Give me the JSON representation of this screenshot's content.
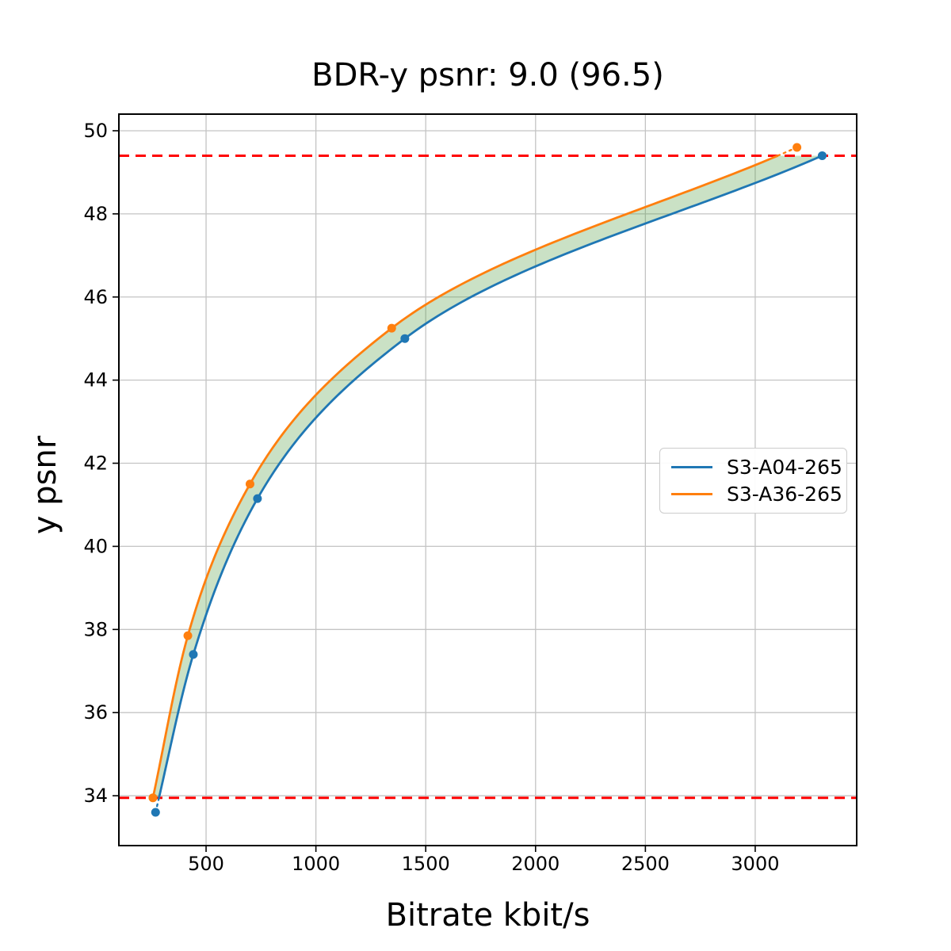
{
  "chart_data": {
    "type": "line",
    "title": "BDR-y psnr: 9.0 (96.5)",
    "xlabel": "Bitrate kbit/s",
    "ylabel": "y psnr",
    "xlim": [
      103,
      3462
    ],
    "ylim": [
      32.8,
      50.4
    ],
    "x_ticks": [
      500,
      1000,
      1500,
      2000,
      2500,
      3000
    ],
    "y_ticks": [
      34,
      36,
      38,
      40,
      42,
      44,
      46,
      48,
      50
    ],
    "grid": true,
    "legend_position": "center right",
    "series": [
      {
        "name": "S3-A04-265",
        "color": "#1f77b4",
        "x": [
          270,
          442,
          734,
          1405,
          3305
        ],
        "y": [
          33.6,
          37.4,
          41.15,
          45.0,
          49.4
        ]
      },
      {
        "name": "S3-A36-265",
        "color": "#ff7f0e",
        "x": [
          258,
          417,
          700,
          1345,
          3190
        ],
        "y": [
          33.95,
          37.85,
          41.5,
          45.25,
          49.6
        ]
      }
    ],
    "hlines": [
      {
        "y": 49.4,
        "color": "#ff0000",
        "style": "dashed"
      },
      {
        "y": 33.95,
        "color": "#ff0000",
        "style": "dashed"
      }
    ],
    "fill_between": {
      "color": "#4e9a3f",
      "opacity": 0.3
    }
  },
  "colors": {
    "grid": "#c4c4c4",
    "spine": "#000000",
    "text": "#000000",
    "legend_border": "#cccccc"
  }
}
